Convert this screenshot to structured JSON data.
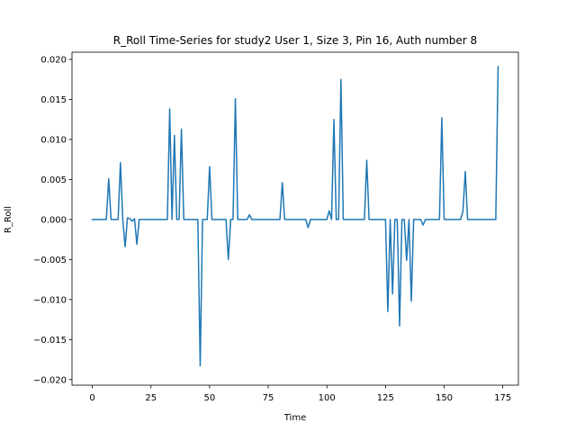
{
  "chart_data": {
    "type": "line",
    "title": "R_Roll Time-Series for study2 User 1, Size 3, Pin 16, Auth number 8",
    "xlabel": "Time",
    "ylabel": "R_Roll",
    "xlim": [
      -8.65,
      181.65
    ],
    "ylim": [
      -0.0207,
      0.0209
    ],
    "xticks": [
      0,
      25,
      50,
      75,
      100,
      125,
      150,
      175
    ],
    "xtick_labels": [
      "0",
      "25",
      "50",
      "75",
      "100",
      "125",
      "150",
      "175"
    ],
    "yticks": [
      -0.02,
      -0.015,
      -0.01,
      -0.005,
      0.0,
      0.005,
      0.01,
      0.015,
      0.02
    ],
    "ytick_labels": [
      "−0.020",
      "−0.015",
      "−0.010",
      "−0.005",
      "0.000",
      "0.005",
      "0.010",
      "0.015",
      "0.020"
    ],
    "grid": false,
    "series": [
      {
        "color": "#1f77b4",
        "points": [
          [
            0,
            0
          ],
          [
            6,
            0
          ],
          [
            7,
            0.0051
          ],
          [
            8,
            0
          ],
          [
            11,
            0
          ],
          [
            12,
            0.0071
          ],
          [
            13,
            0
          ],
          [
            14,
            -0.0034
          ],
          [
            15,
            0.0002
          ],
          [
            16,
            0.0001
          ],
          [
            17,
            -0.0002
          ],
          [
            18,
            0.0001
          ],
          [
            19,
            -0.0031
          ],
          [
            20,
            0
          ],
          [
            32,
            0
          ],
          [
            33,
            0.0138
          ],
          [
            34,
            0
          ],
          [
            35,
            0.0105
          ],
          [
            36,
            0
          ],
          [
            37,
            0
          ],
          [
            38,
            0.0113
          ],
          [
            39,
            0
          ],
          [
            45,
            0
          ],
          [
            46,
            -0.0183
          ],
          [
            47,
            0
          ],
          [
            49,
            0
          ],
          [
            50,
            0.0066
          ],
          [
            51,
            0
          ],
          [
            57,
            0
          ],
          [
            58,
            -0.005
          ],
          [
            59,
            0
          ],
          [
            60,
            0
          ],
          [
            61,
            0.0151
          ],
          [
            62,
            0
          ],
          [
            66,
            0
          ],
          [
            67,
            0.0006
          ],
          [
            68,
            0
          ],
          [
            80,
            0
          ],
          [
            81,
            0.0046
          ],
          [
            82,
            0
          ],
          [
            91,
            0
          ],
          [
            92,
            -0.001
          ],
          [
            93,
            0
          ],
          [
            100,
            0
          ],
          [
            101,
            0.0011
          ],
          [
            102,
            0
          ],
          [
            103,
            0.0125
          ],
          [
            104,
            0
          ],
          [
            105,
            0
          ],
          [
            106,
            0.0175
          ],
          [
            107,
            0
          ],
          [
            116,
            0
          ],
          [
            117,
            0.0074
          ],
          [
            118,
            0
          ],
          [
            125,
            0
          ],
          [
            126,
            -0.0115
          ],
          [
            127,
            0
          ],
          [
            128,
            -0.0093
          ],
          [
            129,
            0
          ],
          [
            130,
            0
          ],
          [
            131,
            -0.0133
          ],
          [
            132,
            0
          ],
          [
            133,
            0
          ],
          [
            134,
            -0.0051
          ],
          [
            135,
            0
          ],
          [
            136,
            -0.0102
          ],
          [
            137,
            0
          ],
          [
            140,
            0
          ],
          [
            141,
            -0.0007
          ],
          [
            142,
            0
          ],
          [
            148,
            0
          ],
          [
            149,
            0.0127
          ],
          [
            150,
            0
          ],
          [
            157,
            0
          ],
          [
            158,
            0.001
          ],
          [
            159,
            0.006
          ],
          [
            160,
            0
          ],
          [
            172,
            0
          ],
          [
            173,
            0.0191
          ]
        ]
      }
    ]
  }
}
